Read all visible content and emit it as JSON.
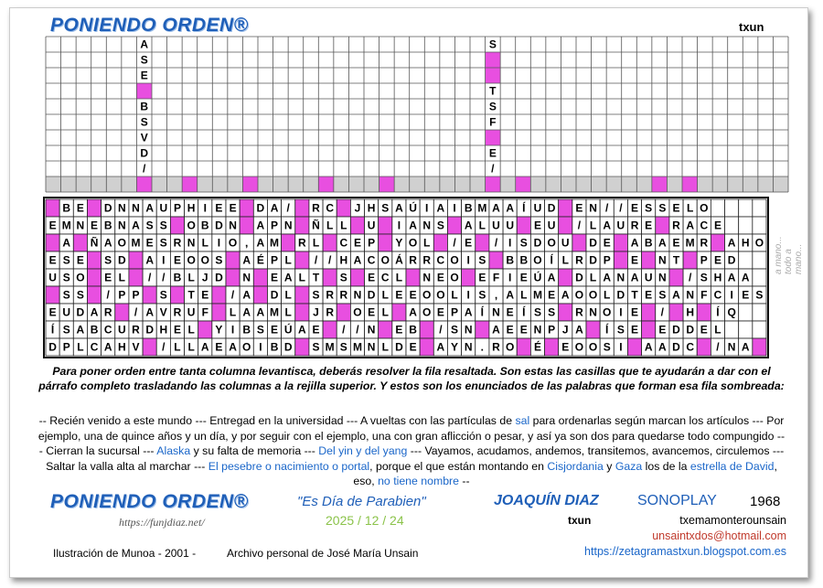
{
  "header": {
    "logo": "PONIENDO ORDEN®",
    "author": "txun"
  },
  "top_grid": {
    "columns": [
      "ASE BSVD/",
      "S  TSF E/"
    ]
  },
  "grid": {
    "rows": [
      " BE DNNAUPHIEE DA/ RC JHSAÚIAIBMAAÍUD EN//ESSELO",
      "EMNEBNASS OBDN APN ÑLL U IANS ALUU EU /LAURE RACE",
      " A ÑAOMESRNLIO,AM RL CEP YOL /E /ISDOU DE ABAEMR AHO",
      "ESE SD AIEOOS AÉPL //HACOÁRRCOIS BBOÍLRDP E NT PED",
      "USO EL //BLJD N EALT S ECL NEO EFIEÚA DLANAUN /SHAA",
      " SS /PP S TE /A DL SRRNDLEEOOLIS,ALMEAOOLDTESANFCIES",
      "EUDAR /AVRUF LAAML JR OEL AOEPAÍNEÍSS RNOIE / H ÍQ",
      "ÍSABCURDHEL YIBSEÚAE //N EB /SN AEENPJA ÍSE EDDEL",
      "DPLCAHV /LLAEAOIBD SMSMNLDE AYN.RO É EOOSI AADC /NA "
    ]
  },
  "side_note": "a mano... todo a mano...",
  "instructions": "Para poner orden entre tanta columna levantisca, deberás resolver la fila resaltada. Son estas las casillas que te ayudarán a dar con el párrafo completo trasladando las columnas a la rejilla superior. Y estos son los enunciados de las palabras que forman esa fila sombreada:",
  "clues": [
    {
      "text": "-- Recién venido a este mundo --- Entregad en la universidad --- A vueltas con las partículas de ",
      "link": false
    },
    {
      "text": "sal",
      "link": true
    },
    {
      "text": " para ordenarlas según marcan los artículos --- Por ejemplo, una de quince años y un día, y por seguir con el ejemplo, una con gran aflicción o pesar, y así ya son dos para quedarse todo compungido --- Cierran la sucursal --- ",
      "link": false
    },
    {
      "text": "Alaska",
      "link": true
    },
    {
      "text": " y su falta de memoria --- ",
      "link": false
    },
    {
      "text": "Del yin y del yang",
      "link": true
    },
    {
      "text": " --- Vayamos, acudamos, andemos, transitemos, avancemos, circulemos --- Saltar la valla alta al marchar --- ",
      "link": false
    },
    {
      "text": "El pesebre o nacimiento o portal",
      "link": true
    },
    {
      "text": ", porque el que están montando en ",
      "link": false
    },
    {
      "text": "Cisjordania",
      "link": true
    },
    {
      "text": " y ",
      "link": false
    },
    {
      "text": "Gaza",
      "link": true
    },
    {
      "text": " los de la ",
      "link": false
    },
    {
      "text": "estrella de David",
      "link": true
    },
    {
      "text": ", eso, ",
      "link": false
    },
    {
      "text": "no tiene nombre",
      "link": true
    },
    {
      "text": " --",
      "link": false
    }
  ],
  "footer": {
    "logo": "PONIENDO ORDEN®",
    "website": "https://funjdiaz.net/",
    "song": "\"Es Día de Parabien\"",
    "date": "2025 / 12 / 24",
    "artist": "JOAQUÍN DIAZ",
    "label": "SONOPLAY",
    "year": "1968",
    "author": "txun",
    "author_name": "txemamonterounsain",
    "email": "unsaintxdos@hotmail.com",
    "blog": "https://zetagramastxun.blogspot.com.es",
    "illustration": "Ilustración de Munoa - 2001 -",
    "archive": "Archivo personal de José María Unsain"
  }
}
